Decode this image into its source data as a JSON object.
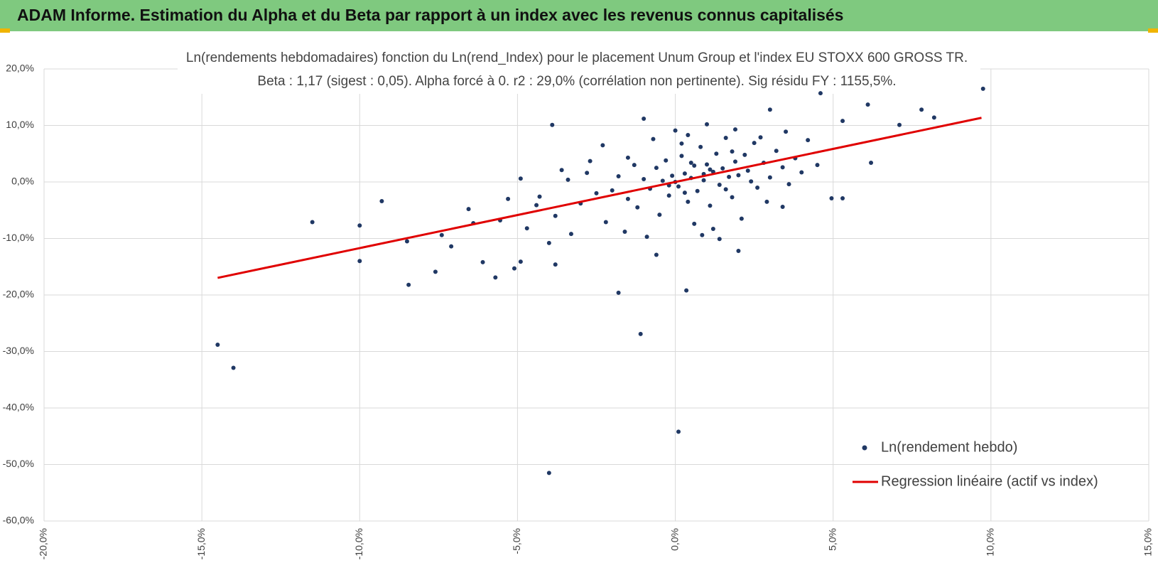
{
  "header": {
    "title": "ADAM Informe. Estimation du Alpha et du Beta par rapport à un index avec les revenus connus capitalisés"
  },
  "chart_data": {
    "type": "scatter",
    "title": "Ln(rendements hebdomadaires) fonction du Ln(rend_Index) pour le placement Unum Group et l'index EU STOXX 600 GROSS TR.",
    "subtitle": "Beta : 1,17 (sigest : 0,05). Alpha forcé à 0. r2 : 29,0% (corrélation non pertinente). Sig résidu FY : 1155,5%.",
    "xlim": [
      -20,
      15
    ],
    "xticks": [
      {
        "value": -20,
        "label": "-20,0%"
      },
      {
        "value": -15,
        "label": "-15,0%"
      },
      {
        "value": -10,
        "label": "-10,0%"
      },
      {
        "value": -5,
        "label": "-5,0%"
      },
      {
        "value": 0,
        "label": "0,0%"
      },
      {
        "value": 5,
        "label": "5,0%"
      },
      {
        "value": 10,
        "label": "10,0%"
      },
      {
        "value": 15,
        "label": "15,0%"
      }
    ],
    "ylim": [
      -60,
      20
    ],
    "yticks": [
      {
        "value": -60,
        "label": "-60,0%"
      },
      {
        "value": -50,
        "label": "-50,0%"
      },
      {
        "value": -40,
        "label": "-40,0%"
      },
      {
        "value": -30,
        "label": "-30,0%"
      },
      {
        "value": -20,
        "label": "-20,0%"
      },
      {
        "value": -10,
        "label": "-10,0%"
      },
      {
        "value": 0,
        "label": "0,0%"
      },
      {
        "value": 10,
        "label": "10,0%"
      },
      {
        "value": 20,
        "label": "20,0%"
      }
    ],
    "grid": true,
    "legend": "lower-right",
    "series": [
      {
        "name": "Ln(rendement hebdo)",
        "color": "#203864",
        "kind": "points",
        "x": [
          -14.5,
          -14.0,
          -11.5,
          -10.0,
          -10.0,
          -9.3,
          -8.5,
          -8.45,
          -7.6,
          -7.4,
          -7.1,
          -6.55,
          -6.1,
          -5.7,
          -5.1,
          -4.9,
          -4.0,
          -3.9,
          -3.8,
          -1.8,
          -1.1,
          0.1,
          0.35,
          -0.6,
          2.0,
          3.0,
          4.6,
          5.3,
          6.1,
          6.2,
          7.1,
          7.8,
          8.2,
          9.75,
          5.3,
          4.95,
          3.4,
          1.4,
          0.85,
          -1.0,
          -1.5,
          -2.3,
          -2.7,
          -3.6,
          -4.9,
          -4.3,
          -5.55,
          -6.4,
          -4.0,
          -3.3,
          -2.5,
          -2.0,
          -1.8,
          -1.5,
          -1.2,
          -1.0,
          -0.8,
          -0.6,
          -0.5,
          -0.4,
          -0.3,
          -0.2,
          -0.1,
          0,
          0.1,
          0.2,
          0.3,
          0.4,
          0.5,
          0.6,
          0.7,
          0.8,
          0.9,
          1.0,
          1.1,
          1.2,
          1.3,
          1.4,
          1.5,
          1.6,
          1.7,
          1.8,
          1.9,
          2.0,
          2.1,
          2.2,
          2.3,
          2.5,
          2.6,
          2.8,
          3.0,
          3.2,
          3.4,
          3.6,
          3.8,
          4.0,
          4.2,
          4.5,
          -3.0,
          -3.4,
          -3.8,
          -4.4,
          -4.7,
          -5.3,
          -2.2,
          -1.6,
          -0.9,
          0.6,
          1.2,
          -0.7,
          0.0,
          0.4,
          1.0,
          1.9,
          2.7,
          3.5,
          -1.3,
          -2.8,
          0.3,
          0.9,
          1.6,
          2.4,
          1.1,
          0.5,
          -0.2,
          1.8,
          2.9,
          0.2
        ],
        "values": [
          -28.8,
          -32.9,
          -7.1,
          -14.0,
          -7.7,
          -3.4,
          -10.5,
          -18.2,
          -15.9,
          -9.4,
          -11.4,
          -4.8,
          -14.2,
          -16.9,
          -15.3,
          -14.1,
          -51.5,
          10.1,
          -14.6,
          -19.6,
          -26.9,
          -44.2,
          -19.2,
          -12.9,
          -12.2,
          12.8,
          15.7,
          10.8,
          13.7,
          3.4,
          10.1,
          12.8,
          11.4,
          16.5,
          -2.9,
          -2.9,
          -4.4,
          -10.1,
          -9.4,
          11.2,
          4.3,
          6.5,
          3.7,
          2.1,
          0.6,
          -2.6,
          -6.8,
          -7.3,
          -10.8,
          -9.2,
          -2.0,
          -1.5,
          1.0,
          -3.0,
          -4.5,
          0.5,
          -1.2,
          2.5,
          -5.8,
          0.2,
          3.8,
          -2.4,
          1.1,
          0,
          -0.8,
          4.6,
          1.5,
          -3.5,
          0.7,
          2.9,
          -1.6,
          6.2,
          0.3,
          3.1,
          -4.2,
          1.8,
          5.0,
          -0.5,
          2.4,
          7.8,
          0.9,
          -2.7,
          3.6,
          1.2,
          -6.5,
          4.8,
          2.0,
          6.9,
          -1.0,
          3.4,
          0.8,
          5.5,
          2.6,
          -0.4,
          4.2,
          1.7,
          7.4,
          3.0,
          -3.8,
          0.4,
          -6.0,
          -4.1,
          -8.2,
          -3.0,
          -7.1,
          -8.8,
          -9.7,
          -7.4,
          -8.3,
          7.6,
          9.1,
          8.3,
          10.2,
          9.3,
          7.9,
          8.9,
          3.0,
          1.6,
          -1.9,
          1.4,
          -1.3,
          0.1,
          2.2,
          3.4,
          -0.6,
          5.4,
          -3.5,
          6.8
        ]
      },
      {
        "name": "Regression linéaire (actif vs index)",
        "color": "#e00000",
        "kind": "line",
        "x": [
          -14.5,
          9.7
        ],
        "values": [
          -16.97,
          11.35
        ]
      }
    ]
  }
}
